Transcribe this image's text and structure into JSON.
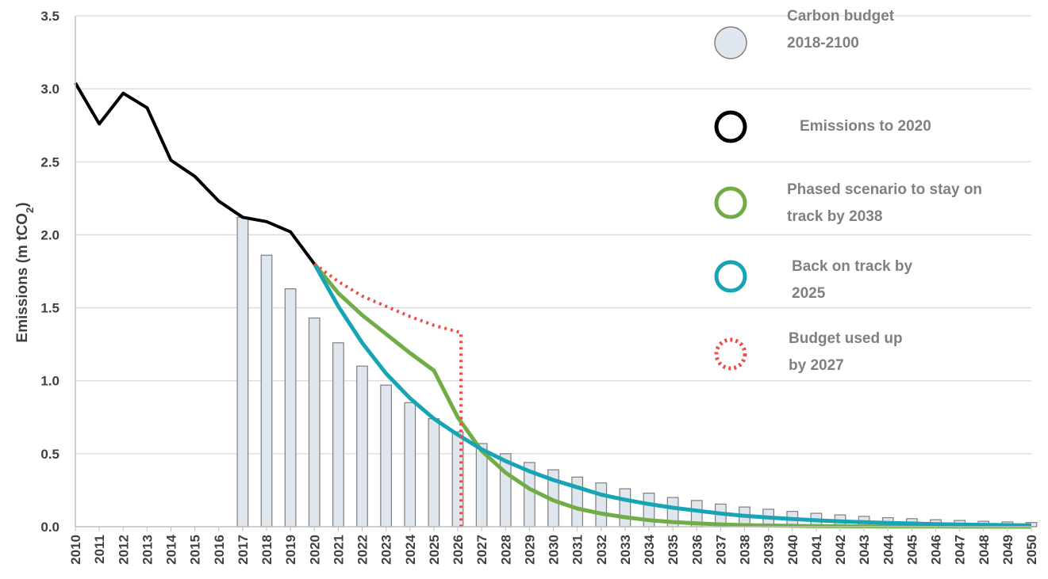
{
  "chart_data": {
    "type": "line",
    "ylabel": "Emissions (m tCO",
    "ylabel_sub": "2",
    "ylabel_end": ")",
    "ylim": [
      0,
      3.5
    ],
    "yticks": [
      "0.0",
      "0.5",
      "1.0",
      "1.5",
      "2.0",
      "2.5",
      "3.0",
      "3.5"
    ],
    "x": [
      "2010",
      "2011",
      "2012",
      "2013",
      "2014",
      "2015",
      "2016",
      "2017",
      "2018",
      "2019",
      "2020",
      "2021",
      "2022",
      "2023",
      "2024",
      "2025",
      "2026",
      "2027",
      "2028",
      "2029",
      "2030",
      "2031",
      "2032",
      "2033",
      "2034",
      "2035",
      "2036",
      "2037",
      "2038",
      "2039",
      "2040",
      "2041",
      "2042",
      "2043",
      "2044",
      "2045",
      "2046",
      "2047",
      "2048",
      "2049",
      "2050"
    ],
    "grid": "horizontal",
    "legend_position": "right",
    "bars": {
      "name": "Carbon budget 2018-2100",
      "start": "2017",
      "values": [
        2.12,
        1.86,
        1.63,
        1.43,
        1.26,
        1.1,
        0.97,
        0.85,
        0.74,
        0.65,
        0.57,
        0.5,
        0.44,
        0.39,
        0.34,
        0.3,
        0.26,
        0.23,
        0.2,
        0.18,
        0.155,
        0.135,
        0.12,
        0.105,
        0.092,
        0.081,
        0.071,
        0.062,
        0.055,
        0.048,
        0.043,
        0.037,
        0.033,
        0.029
      ],
      "color": "#dfe6ee",
      "stroke": "#7f7f7f"
    },
    "series": [
      {
        "name": "Emissions to 2020",
        "x": [
          "2010",
          "2011",
          "2012",
          "2013",
          "2014",
          "2015",
          "2016",
          "2017",
          "2018",
          "2019",
          "2020"
        ],
        "values": [
          3.04,
          2.76,
          2.97,
          2.87,
          2.51,
          2.4,
          2.23,
          2.12,
          2.09,
          2.02,
          1.8
        ],
        "color": "#000000",
        "style": "solid"
      },
      {
        "name": "Phased scenario to stay on track by 2038",
        "x": [
          "2020",
          "2021",
          "2022",
          "2023",
          "2024",
          "2025",
          "2026",
          "2027",
          "2028",
          "2029",
          "2030",
          "2031",
          "2032",
          "2033",
          "2034",
          "2035",
          "2036",
          "2037",
          "2038",
          "2039",
          "2040",
          "2041",
          "2042",
          "2043",
          "2044",
          "2045",
          "2046",
          "2047",
          "2048",
          "2049",
          "2050"
        ],
        "values": [
          1.8,
          1.6,
          1.45,
          1.32,
          1.19,
          1.07,
          0.75,
          0.52,
          0.37,
          0.26,
          0.18,
          0.125,
          0.09,
          0.065,
          0.045,
          0.032,
          0.023,
          0.016,
          0.011,
          0.008,
          0.006,
          0.004,
          0.003,
          0.002,
          0.0015,
          0.001,
          0.001,
          0.0005,
          0.0005,
          0.0003,
          0.0002
        ],
        "color": "#70ad47",
        "style": "solid"
      },
      {
        "name": "Back on track by 2025",
        "x": [
          "2020",
          "2021",
          "2022",
          "2023",
          "2024",
          "2025",
          "2026",
          "2027",
          "2028",
          "2029",
          "2030",
          "2031",
          "2032",
          "2033",
          "2034",
          "2035",
          "2036",
          "2037",
          "2038",
          "2039",
          "2040",
          "2041",
          "2042",
          "2043",
          "2044",
          "2045",
          "2046",
          "2047",
          "2048",
          "2049",
          "2050"
        ],
        "values": [
          1.8,
          1.51,
          1.26,
          1.05,
          0.88,
          0.74,
          0.63,
          0.53,
          0.45,
          0.38,
          0.32,
          0.27,
          0.22,
          0.185,
          0.155,
          0.13,
          0.11,
          0.09,
          0.075,
          0.063,
          0.053,
          0.044,
          0.037,
          0.031,
          0.026,
          0.022,
          0.018,
          0.015,
          0.013,
          0.011,
          0.009
        ],
        "color": "#17a5b5",
        "style": "solid"
      },
      {
        "name": "Budget used up by 2027",
        "x": [
          "2020",
          "2021",
          "2022",
          "2023",
          "2024",
          "2025",
          "2026",
          "2026"
        ],
        "values": [
          1.8,
          1.68,
          1.58,
          1.51,
          1.44,
          1.38,
          1.33,
          0.0
        ],
        "color": "#e8504a",
        "style": "dotted"
      }
    ],
    "legend": [
      {
        "label": "Carbon budget\n2018-2100",
        "kind": "bar"
      },
      {
        "label": "Emissions to 2020",
        "kind": "black"
      },
      {
        "label": "Phased scenario to stay on\ntrack by 2038",
        "kind": "green"
      },
      {
        "label": "Back on track by\n2025",
        "kind": "teal"
      },
      {
        "label": "Budget used up\nby 2027",
        "kind": "dotted"
      }
    ]
  }
}
